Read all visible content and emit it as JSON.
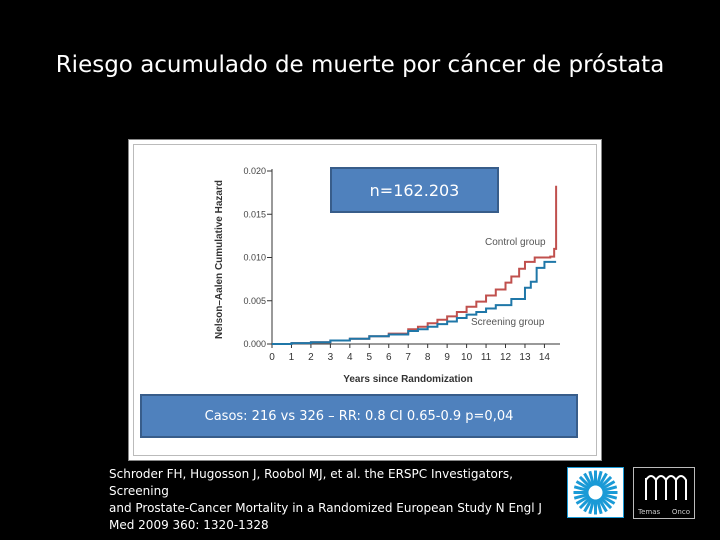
{
  "slide": {
    "title": "Riesgo acumulado de muerte por cáncer de próstata",
    "n_label": "n=162.203",
    "result_label": "Casos: 216 vs 326 – RR: 0.8 CI 0.65-0.9 p=0,04",
    "citation_lines": [
      "Schroder FH, Hugosson J, Roobol MJ, et al. the ERSPC Investigators, Screening",
      "and Prostate-Cancer Mortality in a Randomized European Study N Engl J",
      "Med 2009 360: 1320-1328"
    ],
    "logo_words": [
      "Temas",
      "Onco"
    ]
  },
  "chart_data": {
    "type": "line",
    "xlabel": "Years since Randomization",
    "ylabel": "Nelson–Aalen Cumulative Hazard",
    "xlim": [
      0,
      14.8
    ],
    "ylim": [
      0,
      0.02
    ],
    "x_ticks": [
      0,
      1,
      2,
      3,
      4,
      5,
      6,
      7,
      8,
      9,
      10,
      11,
      12,
      13,
      14
    ],
    "y_ticks": [
      0.0,
      0.005,
      0.01,
      0.015,
      0.02
    ],
    "y_tick_labels": [
      "0.000",
      "0.005",
      "0.010",
      "0.015",
      "0.020"
    ],
    "grid": false,
    "colors": {
      "control": "#c0504d",
      "screening": "#1f77a8"
    },
    "series": [
      {
        "name": "Control group",
        "x": [
          0,
          1,
          2,
          3,
          4,
          5,
          6,
          7,
          7.5,
          8,
          8.5,
          9,
          9.5,
          10,
          10.5,
          11,
          11.5,
          12,
          12.3,
          12.7,
          13,
          13.5,
          14,
          14.3,
          14.5,
          14.6
        ],
        "y": [
          0,
          0.0001,
          0.0002,
          0.0004,
          0.0006,
          0.0009,
          0.0012,
          0.0017,
          0.002,
          0.0024,
          0.0028,
          0.0032,
          0.0037,
          0.0043,
          0.0049,
          0.0056,
          0.0063,
          0.0071,
          0.0078,
          0.0087,
          0.0095,
          0.01,
          0.01,
          0.0101,
          0.011,
          0.0183
        ]
      },
      {
        "name": "Screening group",
        "x": [
          0,
          1,
          2,
          3,
          4,
          5,
          6,
          7,
          7.5,
          8,
          8.5,
          9,
          9.5,
          10,
          10.5,
          11,
          11.5,
          12,
          12.3,
          12.7,
          13,
          13.3,
          13.6,
          14,
          14.6
        ],
        "y": [
          0,
          0.0001,
          0.0002,
          0.0004,
          0.0006,
          0.0009,
          0.0011,
          0.0015,
          0.0017,
          0.002,
          0.0023,
          0.0026,
          0.003,
          0.0034,
          0.0037,
          0.0041,
          0.0045,
          0.0045,
          0.0052,
          0.0052,
          0.0065,
          0.0072,
          0.0088,
          0.0095,
          0.0095
        ]
      }
    ]
  }
}
